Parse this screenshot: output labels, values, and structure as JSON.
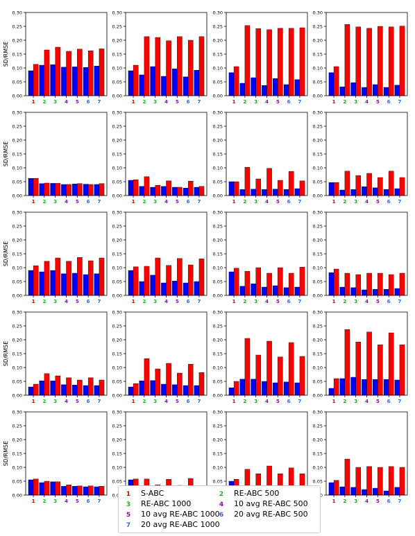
{
  "chart_data": {
    "type": "bar",
    "ylabel": "SD/RMSE",
    "categories": [
      "1",
      "2",
      "3",
      "4",
      "5",
      "6",
      "7"
    ],
    "category_colors": [
      "#cc0000",
      "#22aa22",
      "#22aa22",
      "#881199",
      "#881199",
      "#3366cc",
      "#3366cc"
    ],
    "series_colors": {
      "sd": "#0000ff",
      "rmse": "#ff0000"
    },
    "ylim": [
      0,
      0.3
    ],
    "yticks": [
      "0.00",
      "0.05",
      "0.10",
      "0.15",
      "0.20",
      "0.25",
      "0.30"
    ],
    "legend": {
      "placement": "bottom-center",
      "entries": [
        {
          "num": "1",
          "label": "S-ABC",
          "color": "#cc0000"
        },
        {
          "num": "2",
          "label": "RE-ABC 500",
          "color": "#22aa22"
        },
        {
          "num": "3",
          "label": "RE-ABC 1000",
          "color": "#22aa22"
        },
        {
          "num": "4",
          "label": "10 avg RE-ABC 500",
          "color": "#881199"
        },
        {
          "num": "5",
          "label": "10 avg RE-ABC 1000",
          "color": "#881199"
        },
        {
          "num": "6",
          "label": "20 avg RE-ABC 500",
          "color": "#3366cc"
        },
        {
          "num": "7",
          "label": "20 avg RE-ABC 1000",
          "color": "#3366cc"
        }
      ]
    },
    "panels": [
      {
        "sd": [
          0.09,
          0.11,
          0.112,
          0.103,
          0.104,
          0.102,
          0.107
        ],
        "rmse": [
          0.113,
          0.165,
          0.175,
          0.16,
          0.168,
          0.162,
          0.169
        ]
      },
      {
        "sd": [
          0.09,
          0.075,
          0.105,
          0.07,
          0.097,
          0.068,
          0.092
        ],
        "rmse": [
          0.11,
          0.213,
          0.21,
          0.198,
          0.213,
          0.2,
          0.213
        ]
      },
      {
        "sd": [
          0.083,
          0.045,
          0.065,
          0.037,
          0.062,
          0.04,
          0.058
        ],
        "rmse": [
          0.105,
          0.253,
          0.242,
          0.238,
          0.243,
          0.243,
          0.245
        ]
      },
      {
        "sd": [
          0.083,
          0.032,
          0.047,
          0.03,
          0.04,
          0.03,
          0.038
        ],
        "rmse": [
          0.105,
          0.257,
          0.248,
          0.243,
          0.25,
          0.248,
          0.251
        ]
      },
      {
        "sd": [
          0.062,
          0.043,
          0.044,
          0.04,
          0.042,
          0.041,
          0.04
        ],
        "rmse": [
          0.062,
          0.045,
          0.044,
          0.04,
          0.043,
          0.04,
          0.043
        ]
      },
      {
        "sd": [
          0.055,
          0.033,
          0.03,
          0.033,
          0.03,
          0.027,
          0.03
        ],
        "rmse": [
          0.057,
          0.068,
          0.037,
          0.053,
          0.03,
          0.052,
          0.033
        ]
      },
      {
        "sd": [
          0.05,
          0.022,
          0.023,
          0.022,
          0.023,
          0.022,
          0.025
        ],
        "rmse": [
          0.05,
          0.102,
          0.06,
          0.098,
          0.055,
          0.087,
          0.053
        ]
      },
      {
        "sd": [
          0.047,
          0.02,
          0.022,
          0.032,
          0.028,
          0.022,
          0.025
        ],
        "rmse": [
          0.047,
          0.088,
          0.072,
          0.08,
          0.065,
          0.088,
          0.065
        ]
      },
      {
        "sd": [
          0.09,
          0.085,
          0.09,
          0.078,
          0.08,
          0.075,
          0.078
        ],
        "rmse": [
          0.107,
          0.123,
          0.135,
          0.123,
          0.137,
          0.125,
          0.135
        ]
      },
      {
        "sd": [
          0.09,
          0.05,
          0.073,
          0.045,
          0.052,
          0.045,
          0.05
        ],
        "rmse": [
          0.103,
          0.105,
          0.135,
          0.108,
          0.133,
          0.11,
          0.132
        ]
      },
      {
        "sd": [
          0.085,
          0.033,
          0.042,
          0.03,
          0.035,
          0.028,
          0.03
        ],
        "rmse": [
          0.098,
          0.087,
          0.1,
          0.08,
          0.1,
          0.08,
          0.102
        ]
      },
      {
        "sd": [
          0.082,
          0.03,
          0.028,
          0.02,
          0.022,
          0.022,
          0.025
        ],
        "rmse": [
          0.095,
          0.08,
          0.075,
          0.08,
          0.08,
          0.075,
          0.08
        ]
      },
      {
        "sd": [
          0.03,
          0.052,
          0.052,
          0.038,
          0.037,
          0.035,
          0.035
        ],
        "rmse": [
          0.04,
          0.078,
          0.07,
          0.063,
          0.055,
          0.063,
          0.055
        ]
      },
      {
        "sd": [
          0.03,
          0.052,
          0.053,
          0.04,
          0.038,
          0.035,
          0.035
        ],
        "rmse": [
          0.042,
          0.132,
          0.095,
          0.115,
          0.08,
          0.112,
          0.082
        ]
      },
      {
        "sd": [
          0.027,
          0.058,
          0.058,
          0.05,
          0.045,
          0.048,
          0.045
        ],
        "rmse": [
          0.05,
          0.205,
          0.145,
          0.195,
          0.138,
          0.19,
          0.14
        ]
      },
      {
        "sd": [
          0.025,
          0.06,
          0.065,
          0.057,
          0.057,
          0.057,
          0.055
        ],
        "rmse": [
          0.06,
          0.237,
          0.192,
          0.228,
          0.182,
          0.225,
          0.182
        ]
      },
      {
        "sd": [
          0.055,
          0.045,
          0.048,
          0.032,
          0.032,
          0.03,
          0.03
        ],
        "rmse": [
          0.058,
          0.05,
          0.048,
          0.037,
          0.033,
          0.033,
          0.032
        ]
      },
      {
        "sd": [
          0.055,
          0.025,
          0.03,
          0.032,
          0.02,
          0.025,
          0.02
        ],
        "rmse": [
          0.058,
          0.058,
          0.037,
          0.057,
          0.035,
          0.06,
          0.032
        ]
      },
      {
        "sd": [
          0.05,
          0.03,
          0.03,
          0.022,
          0.025,
          0.018,
          0.028
        ],
        "rmse": [
          0.057,
          0.093,
          0.077,
          0.105,
          0.077,
          0.098,
          0.077
        ]
      },
      {
        "sd": [
          0.045,
          0.03,
          0.028,
          0.02,
          0.025,
          0.015,
          0.028
        ],
        "rmse": [
          0.053,
          0.13,
          0.1,
          0.103,
          0.1,
          0.103,
          0.1
        ]
      }
    ]
  }
}
